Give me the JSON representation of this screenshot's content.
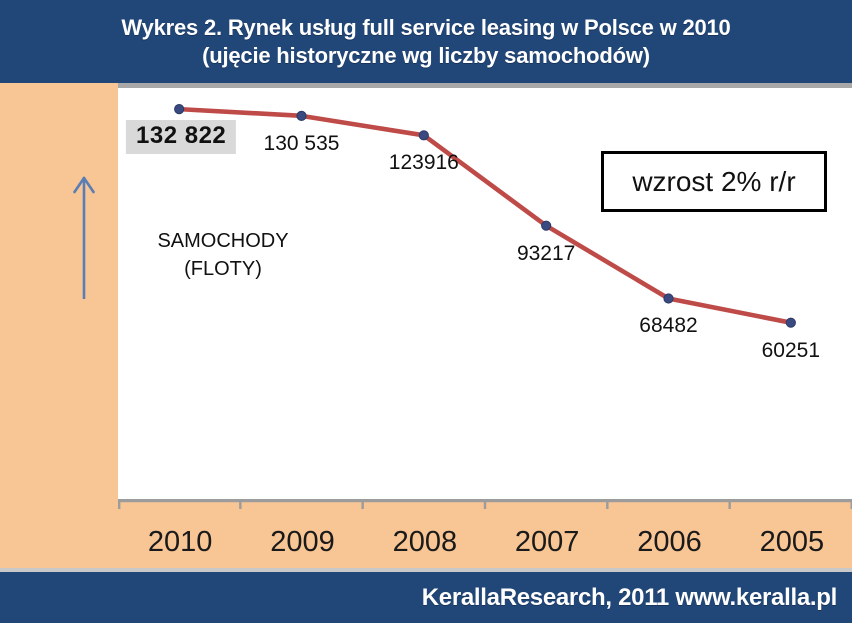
{
  "header": {
    "title_line1": "Wykres 2. Rynek usług full service leasing w Polsce  w 2010",
    "title_line2": "(ujęcie historyczne wg liczby samochodów)"
  },
  "chart_data": {
    "type": "line",
    "title": "Wykres 2. Rynek usług full service leasing w Polsce w 2010 (ujęcie historyczne wg liczby samochodów)",
    "categories": [
      "2010",
      "2009",
      "2008",
      "2007",
      "2006",
      "2005"
    ],
    "values": [
      132822,
      130535,
      123916,
      93217,
      68482,
      60251
    ],
    "labels": [
      "132 822",
      "130 535",
      "123916",
      "93217",
      "68482",
      "60251"
    ],
    "series_label_line1": "SAMOCHODY",
    "series_label_line2": "(FLOTY)",
    "annotation": "wzrost 2% r/r",
    "xlabel": "",
    "ylabel": "",
    "ylim": [
      0,
      140000
    ],
    "grid": false,
    "legend": "none",
    "note": "x axis ordered newest to oldest, 2010 on the left through 2005 on the right; y axis not labeled (implied count of cars)"
  },
  "footer": {
    "text": "KerallaResearch, 2011 www.keralla.pl"
  },
  "colors": {
    "banner_bg": "#214678",
    "content_bg": "#F8C594",
    "plot_bg": "#FFFFFF",
    "line": "#BE4B48",
    "marker": "#3A4A80",
    "axis": "#9C9C9C",
    "first_label_bg": "#D9D9D9",
    "annotation_border": "#000000",
    "arrow": "#5A7DB5",
    "divider": "#C9C9C9",
    "title_text": "#FFFFFF"
  }
}
